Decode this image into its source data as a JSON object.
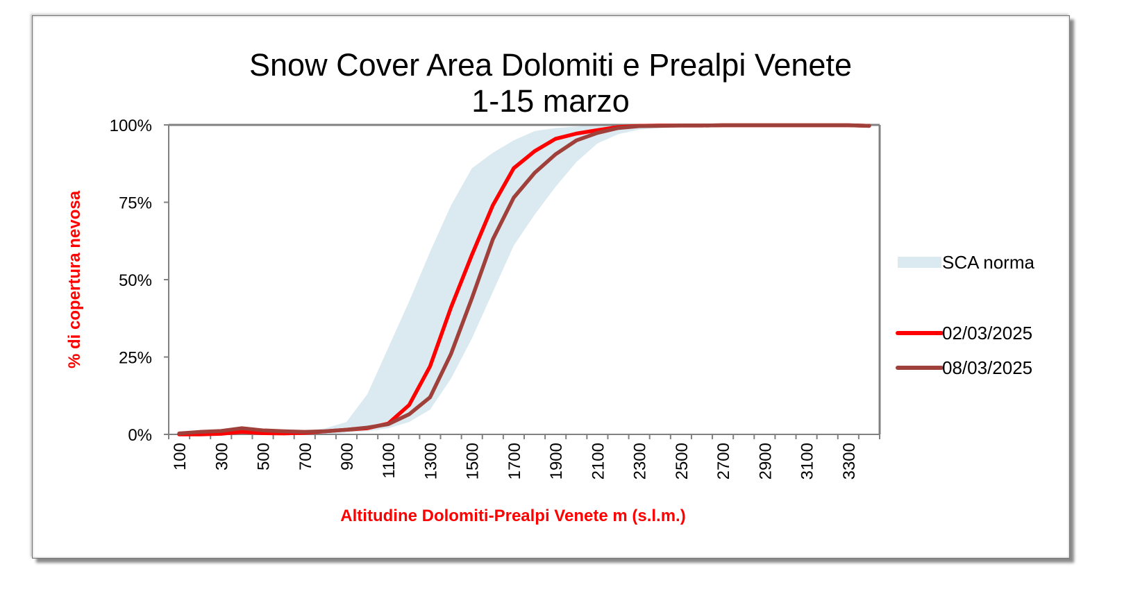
{
  "chart_data": {
    "type": "line",
    "title": "Snow Cover Area Dolomiti e Prealpi Venete",
    "subtitle": "1-15 marzo",
    "xlabel": "Altitudine Dolomiti-Prealpi Venete m (s.l.m.)",
    "ylabel": "% di copertura nevosa",
    "x": [
      100,
      200,
      300,
      400,
      500,
      600,
      700,
      800,
      900,
      1000,
      1100,
      1200,
      1300,
      1400,
      1500,
      1600,
      1700,
      1800,
      1900,
      2000,
      2100,
      2200,
      2300,
      2400,
      2500,
      2600,
      2700,
      2800,
      2900,
      3000,
      3100,
      3200,
      3300,
      3400
    ],
    "x_tick_labels": [
      "100",
      "300",
      "500",
      "700",
      "900",
      "1100",
      "1300",
      "1500",
      "1700",
      "1900",
      "2100",
      "2300",
      "2500",
      "2700",
      "2900",
      "3100",
      "3300"
    ],
    "y_tick_labels": [
      "0%",
      "25%",
      "50%",
      "75%",
      "100%"
    ],
    "ylim": [
      0,
      100
    ],
    "grid": false,
    "legend_position": "right",
    "band": {
      "name": "SCA norma",
      "color": "#dbeaf1",
      "lower": [
        0,
        0,
        0,
        0,
        0,
        0,
        0,
        0,
        0.5,
        1,
        2,
        4,
        8,
        18,
        31,
        46,
        61,
        71,
        80,
        88,
        94,
        97,
        98.5,
        99,
        99.5,
        99.7,
        99.8,
        99.9,
        99.9,
        100,
        100,
        100,
        100,
        100
      ],
      "upper": [
        0,
        0,
        0,
        0,
        0,
        0.5,
        1,
        2,
        4,
        13,
        28,
        43,
        59,
        74,
        86,
        91,
        95,
        98,
        99,
        99.5,
        100,
        100,
        100,
        100,
        100,
        100,
        100,
        100,
        100,
        100,
        100,
        100,
        100,
        100
      ]
    },
    "series": [
      {
        "name": "02/03/2025",
        "color": "#ff0000",
        "values": [
          0,
          0,
          0.2,
          0.8,
          0.4,
          0.3,
          0.5,
          1,
          1.5,
          2,
          3.5,
          9.5,
          22,
          41,
          58,
          74,
          86,
          91.5,
          95.5,
          97.2,
          98.3,
          99.3,
          99.7,
          99.8,
          99.8,
          99.8,
          99.9,
          99.9,
          99.9,
          99.9,
          99.9,
          99.9,
          99.9,
          99.7
        ]
      },
      {
        "name": "08/03/2025",
        "color": "#a0403a",
        "values": [
          0.3,
          0.8,
          1.1,
          2,
          1.3,
          1,
          0.8,
          1,
          1.5,
          2.2,
          3.3,
          6.5,
          12,
          26,
          44,
          63,
          76.5,
          84.5,
          90.5,
          95,
          97.4,
          99,
          99.6,
          99.7,
          99.8,
          99.8,
          99.9,
          99.9,
          99.9,
          99.9,
          99.9,
          99.9,
          99.9,
          99.7
        ]
      }
    ]
  }
}
